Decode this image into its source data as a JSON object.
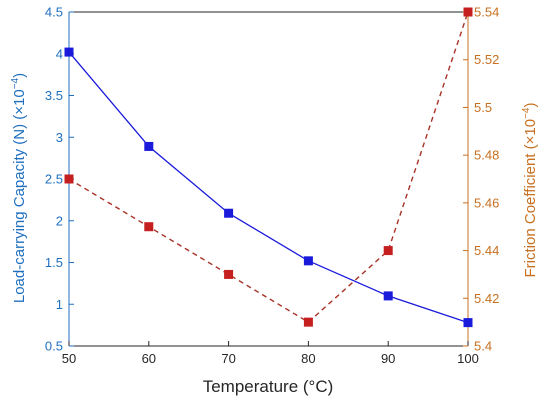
{
  "chart_data": {
    "type": "line",
    "xlabel": "Temperature (°C)",
    "x_ticks": [
      50,
      60,
      70,
      80,
      90,
      100
    ],
    "xlim": [
      50,
      100
    ],
    "ylabel_left": "Load-carrying Capacity (N) (×10",
    "ylabel_left_exp": "−4",
    "ylabel_left_close": ")",
    "ylim_left": [
      0.5,
      4.5
    ],
    "yticks_left": [
      "0.5",
      "1",
      "1.5",
      "2",
      "2.5",
      "3",
      "3.5",
      "4",
      "4.5"
    ],
    "ylabel_right": "Friction Coefficient (×10",
    "ylabel_right_exp": "−4",
    "ylabel_right_close": ")",
    "ylim_right": [
      5.4,
      5.54
    ],
    "yticks_right": [
      "5.4",
      "5.42",
      "5.44",
      "5.46",
      "5.48",
      "5.5",
      "5.52",
      "5.54"
    ],
    "grid": false,
    "series": [
      {
        "axis": "left",
        "style": "solid",
        "color": "#1a1adb",
        "marker_color": "#1a1adb",
        "x": [
          50,
          60,
          70,
          80,
          90,
          100
        ],
        "values": [
          4.02,
          2.89,
          2.09,
          1.52,
          1.1,
          0.78
        ]
      },
      {
        "axis": "right",
        "style": "dashed",
        "color": "#a83226",
        "marker_color": "#c61f1f",
        "x": [
          50,
          60,
          70,
          80,
          90,
          100
        ],
        "values": [
          5.47,
          5.45,
          5.43,
          5.41,
          5.44,
          5.54
        ]
      }
    ],
    "colors": {
      "left_axis": "#1f6fbf",
      "right_axis": "#c87020",
      "bottom_axis": "#262626"
    }
  }
}
